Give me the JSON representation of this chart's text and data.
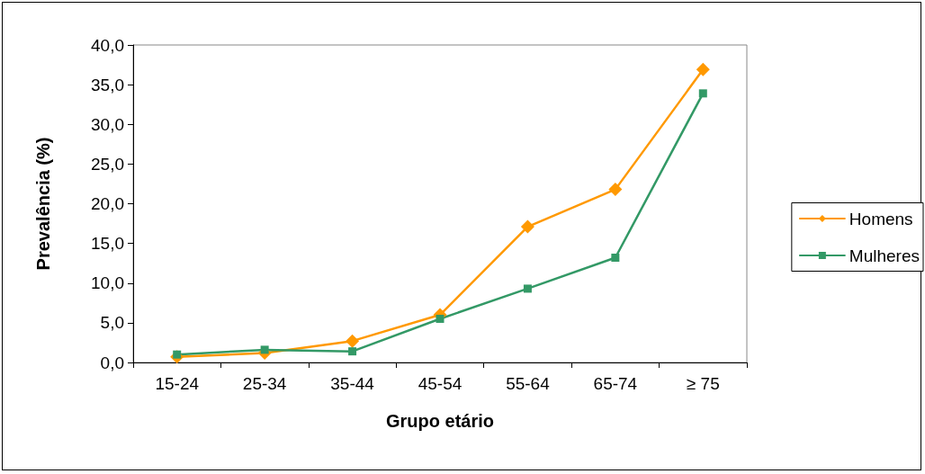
{
  "chart_data": {
    "type": "line",
    "xlabel": "Grupo etário",
    "ylabel": "Prevalência (%)",
    "categories": [
      "15-24",
      "25-34",
      "35-44",
      "45-54",
      "55-64",
      "65-74",
      "≥ 75"
    ],
    "series": [
      {
        "name": "Homens",
        "color": "#ff9900",
        "marker": "diamond",
        "values": [
          0.7,
          1.2,
          2.7,
          6.0,
          17.1,
          21.8,
          36.9
        ]
      },
      {
        "name": "Mulheres",
        "color": "#339966",
        "marker": "square",
        "values": [
          1.0,
          1.6,
          1.4,
          5.5,
          9.3,
          13.2,
          33.9
        ]
      }
    ],
    "ylim": [
      0,
      40
    ],
    "yticks": [
      {
        "value": 0,
        "label": "0,0"
      },
      {
        "value": 5,
        "label": "5,0"
      },
      {
        "value": 10,
        "label": "10,0"
      },
      {
        "value": 15,
        "label": "15,0"
      },
      {
        "value": 20,
        "label": "20,0"
      },
      {
        "value": 25,
        "label": "25,0"
      },
      {
        "value": 30,
        "label": "30,0"
      },
      {
        "value": 35,
        "label": "35,0"
      },
      {
        "value": 40,
        "label": "40,0"
      }
    ],
    "grid": false,
    "legend": "right",
    "line_style": "solid"
  }
}
